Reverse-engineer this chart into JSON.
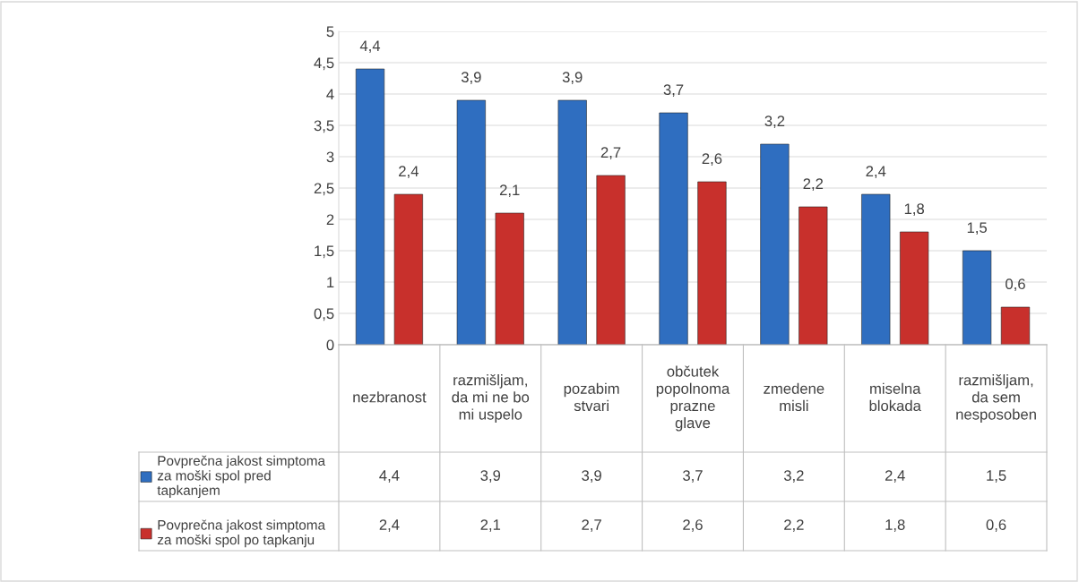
{
  "chart_data": {
    "type": "bar",
    "categories": [
      "nezbranost",
      "razmišljam, da mi ne bo mi uspelo",
      "pozabim stvari",
      "občutek popolnoma prazne glave",
      "zmedene misli",
      "miselna blokada",
      "razmišljam, da sem nesposoben"
    ],
    "series": [
      {
        "name": "Povprečna jakost simptoma za moški spol pred tapkanjem",
        "color": "#2f6ec0",
        "values": [
          4.4,
          3.9,
          3.9,
          3.7,
          3.2,
          2.4,
          1.5
        ],
        "value_labels": [
          "4,4",
          "3,9",
          "3,9",
          "3,7",
          "3,2",
          "2,4",
          "1,5"
        ]
      },
      {
        "name": "Povprečna jakost simptoma za moški spol po tapkanju",
        "color": "#c8302c",
        "values": [
          2.4,
          2.1,
          2.7,
          2.6,
          2.2,
          1.8,
          0.6
        ],
        "value_labels": [
          "2,4",
          "2,1",
          "2,7",
          "2,6",
          "2,2",
          "1,8",
          "0,6"
        ]
      }
    ],
    "ylim": [
      0,
      5
    ],
    "yticks": [
      0,
      {
        "value": 0.5,
        "label": "0,5"
      },
      1,
      {
        "value": 1.5,
        "label": "1,5"
      },
      2,
      {
        "value": 2.5,
        "label": "2,5"
      },
      3,
      {
        "value": 3.5,
        "label": "3,5"
      },
      4,
      {
        "value": 4.5,
        "label": "4,5"
      },
      5
    ],
    "grid": "y",
    "legend": "bottom"
  }
}
